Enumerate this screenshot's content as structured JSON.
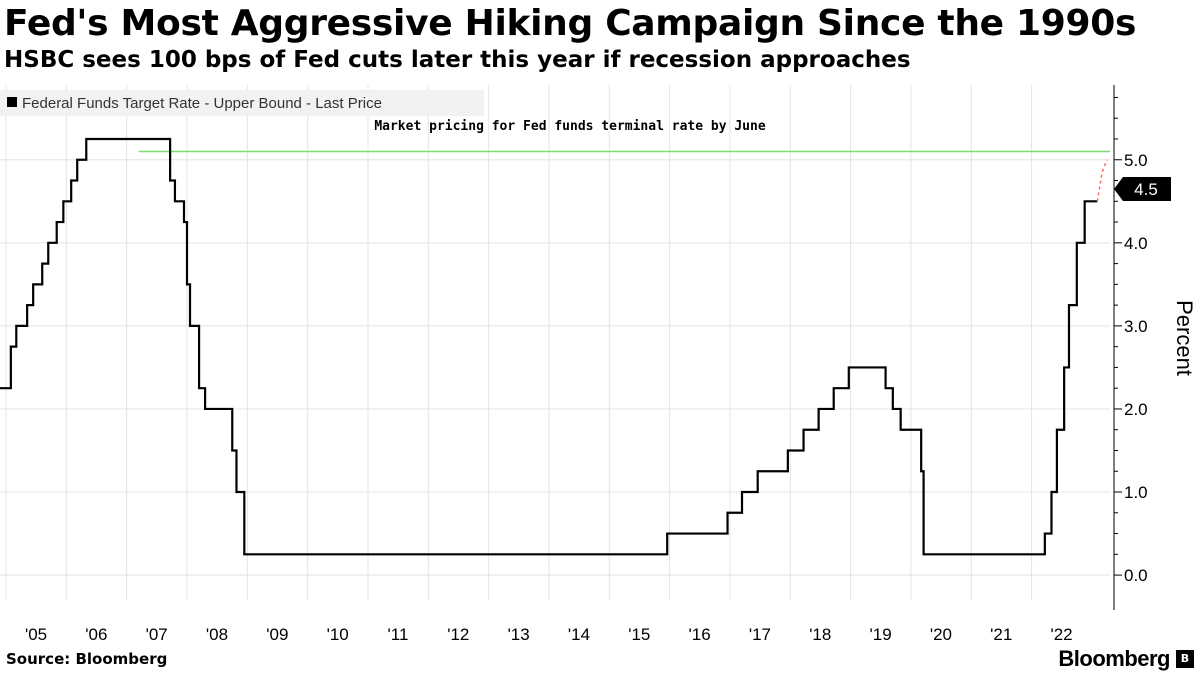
{
  "chart_data": {
    "type": "line",
    "title": "Fed's Most Aggressive Hiking Campaign Since the 1990s",
    "subtitle": "HSBC sees 100 bps of Fed cuts later this year if recession approaches",
    "xlabel": "",
    "ylabel": "Percent",
    "xlim": [
      2004.9,
      2023.3
    ],
    "ylim": [
      -0.3,
      5.9
    ],
    "y_ticks": [
      0.0,
      1.0,
      2.0,
      3.0,
      4.0,
      5.0
    ],
    "y_tick_labels": [
      "0.0",
      "1.0",
      "2.0",
      "3.0",
      "4.0",
      "5.0"
    ],
    "x_ticks": [
      2005,
      2006,
      2007,
      2008,
      2009,
      2010,
      2011,
      2012,
      2013,
      2014,
      2015,
      2016,
      2017,
      2018,
      2019,
      2020,
      2021,
      2022
    ],
    "x_tick_labels": [
      "'05",
      "'06",
      "'07",
      "'08",
      "'09",
      "'10",
      "'11",
      "'12",
      "'13",
      "'14",
      "'15",
      "'16",
      "'17",
      "'18",
      "'19",
      "'20",
      "'21",
      "'22"
    ],
    "grid": true,
    "legend_position": "top-left",
    "series": [
      {
        "name": "Federal Funds Target Rate - Upper Bound - Last Price",
        "color": "#000000",
        "step": true,
        "x": [
          2004.9,
          2005.08,
          2005.17,
          2005.35,
          2005.45,
          2005.6,
          2005.7,
          2005.84,
          2005.95,
          2006.08,
          2006.18,
          2006.33,
          2006.45,
          2006.57,
          2007.72,
          2007.8,
          2007.95,
          2008.0,
          2008.05,
          2008.2,
          2008.3,
          2008.75,
          2008.82,
          2008.95,
          2015.96,
          2016.96,
          2017.2,
          2017.46,
          2017.96,
          2018.22,
          2018.47,
          2018.72,
          2018.97,
          2019.58,
          2019.7,
          2019.83,
          2020.17,
          2020.21,
          2022.22,
          2022.33,
          2022.42,
          2022.54,
          2022.62,
          2022.75,
          2022.88,
          2023.09
        ],
        "values": [
          2.25,
          2.75,
          3.0,
          3.25,
          3.5,
          3.75,
          4.0,
          4.25,
          4.5,
          4.75,
          5.0,
          5.25,
          5.25,
          5.25,
          4.75,
          4.5,
          4.25,
          3.5,
          3.0,
          2.25,
          2.0,
          1.5,
          1.0,
          0.25,
          0.5,
          0.75,
          1.0,
          1.25,
          1.5,
          1.75,
          2.0,
          2.25,
          2.5,
          2.25,
          2.0,
          1.75,
          1.25,
          0.25,
          0.5,
          1.0,
          1.75,
          2.5,
          3.25,
          4.0,
          4.5,
          4.5
        ]
      },
      {
        "name": "",
        "color": "#ff6b6b",
        "dashed": true,
        "x": [
          2023.09,
          2023.17,
          2023.25
        ],
        "values": [
          4.5,
          4.85,
          5.0
        ]
      }
    ],
    "reference_line": {
      "value": 5.1,
      "label": "Market pricing for Fed funds terminal rate by June",
      "color": "#7ddc6f"
    },
    "last_value_label": "4.5",
    "source": "Source: Bloomberg",
    "brand": "Bloomberg"
  }
}
